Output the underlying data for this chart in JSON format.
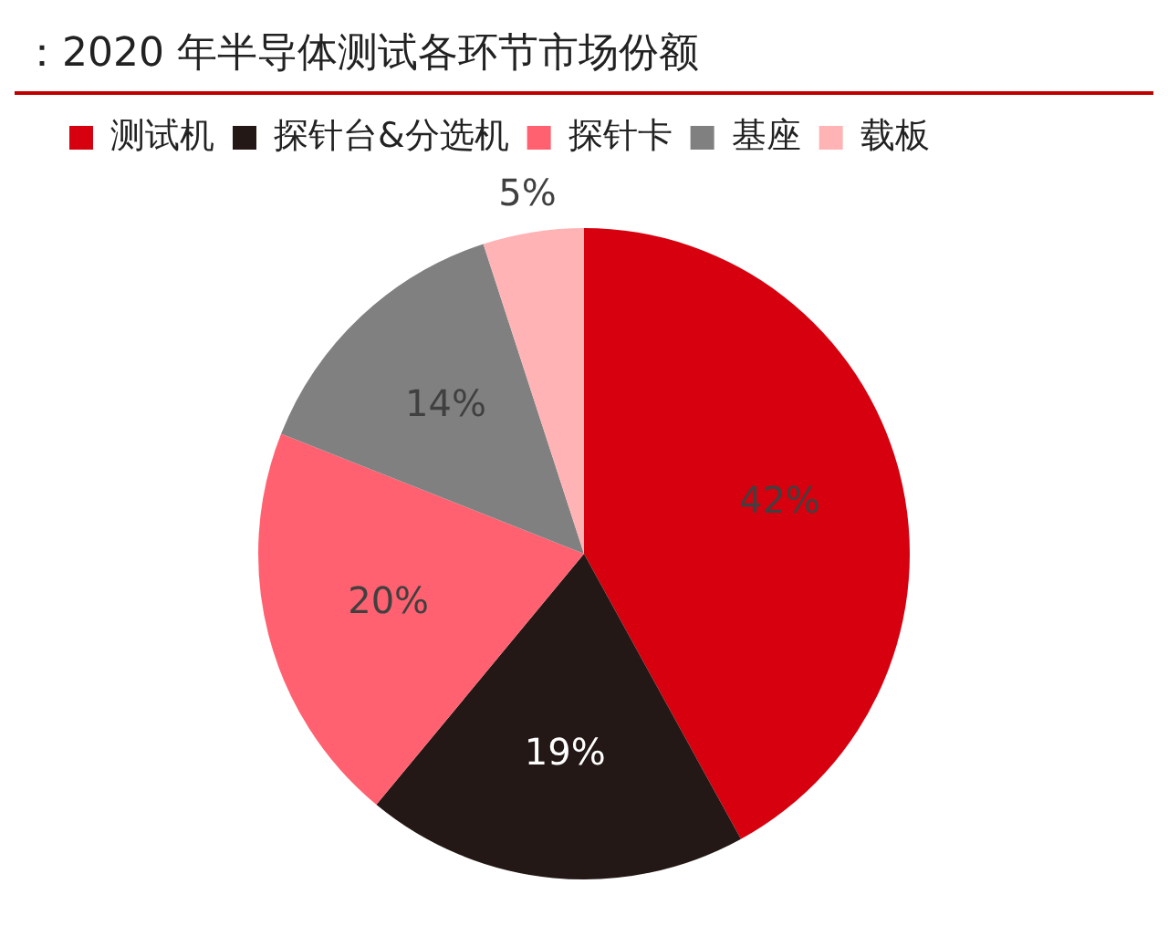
{
  "chart_data": {
    "type": "pie",
    "title": "：2020 年半导体测试各环节市场份额",
    "categories": [
      "测试机",
      "探针台&分选机",
      "探针卡",
      "基座",
      "载板"
    ],
    "values": [
      42,
      19,
      20,
      14,
      5
    ],
    "colors": [
      "#d7000f",
      "#231815",
      "#ff6170",
      "#808080",
      "#ffb3b5"
    ],
    "value_labels": [
      "42%",
      "19%",
      "20%",
      "14%",
      "5%"
    ],
    "legend": "top"
  }
}
